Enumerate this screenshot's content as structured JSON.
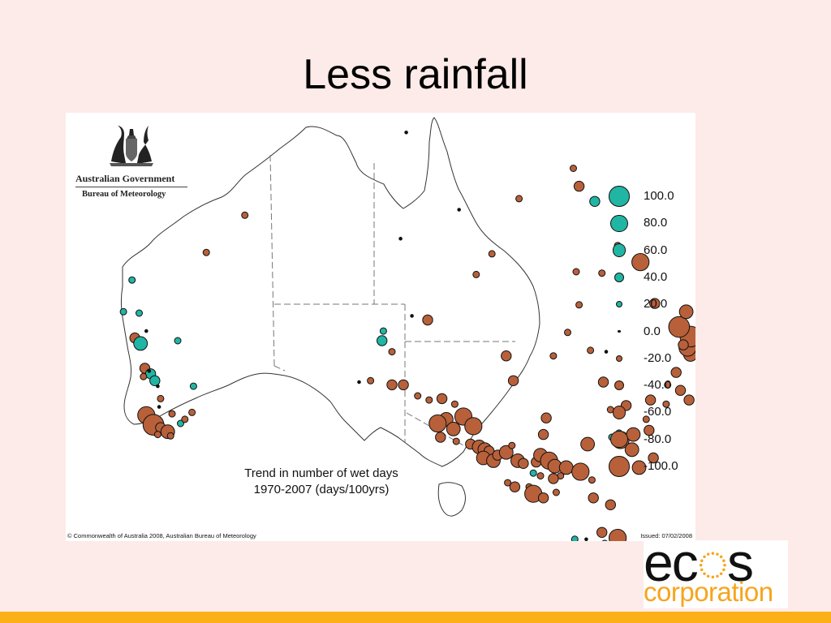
{
  "slide": {
    "title": "Less rainfall"
  },
  "map": {
    "org_name": "Australian Government",
    "org_sub": "Bureau of Meteorology",
    "caption_line1": "Trend in number of wet days",
    "caption_line2": "1970-2007 (days/100yrs)",
    "copyright": "© Commonwealth of Australia 2008, Australian Bureau of Meteorology",
    "issued": "Issued: 07/02/2008",
    "colors": {
      "wetter": "#21b5a4",
      "drier": "#b8603a",
      "outline": "#111111",
      "borders": "#777777"
    },
    "legend": [
      {
        "value": "100.0",
        "trend": 100
      },
      {
        "value": "80.0",
        "trend": 80
      },
      {
        "value": "60.0",
        "trend": 60
      },
      {
        "value": "40.0",
        "trend": 40
      },
      {
        "value": "20.0",
        "trend": 20
      },
      {
        "value": "0.0",
        "trend": 0
      },
      {
        "value": "-20.0",
        "trend": -20
      },
      {
        "value": "-40.0",
        "trend": -40
      },
      {
        "value": "-60.0",
        "trend": -60
      },
      {
        "value": "-80.0",
        "trend": -80
      },
      {
        "value": "-100.0",
        "trend": -100
      }
    ],
    "stations": [
      [
        119.5,
        -20.6,
        -20
      ],
      [
        122.2,
        -17.9,
        -20
      ],
      [
        114.3,
        -22.6,
        20
      ],
      [
        114.8,
        -25.0,
        20
      ],
      [
        113.7,
        -24.9,
        20
      ],
      [
        115.3,
        -26.3,
        0
      ],
      [
        114.5,
        -26.8,
        -40
      ],
      [
        114.9,
        -27.2,
        60
      ],
      [
        117.5,
        -27.0,
        20
      ],
      [
        115.2,
        -29.0,
        -40
      ],
      [
        115.6,
        -29.4,
        40
      ],
      [
        115.9,
        -29.9,
        40
      ],
      [
        115.1,
        -29.6,
        -20
      ],
      [
        115.5,
        -29.2,
        0
      ],
      [
        116.1,
        -30.3,
        0
      ],
      [
        118.6,
        -30.3,
        20
      ],
      [
        116.3,
        -31.2,
        -20
      ],
      [
        116.2,
        -31.8,
        0
      ],
      [
        117.1,
        -32.3,
        -20
      ],
      [
        117.7,
        -33.0,
        20
      ],
      [
        118.0,
        -32.7,
        -20
      ],
      [
        115.3,
        -32.4,
        -80
      ],
      [
        115.8,
        -33.1,
        -100
      ],
      [
        116.3,
        -33.3,
        -40
      ],
      [
        116.8,
        -33.6,
        -60
      ],
      [
        116.1,
        -33.8,
        -20
      ],
      [
        117.0,
        -33.9,
        -20
      ],
      [
        118.5,
        -32.2,
        -20
      ],
      [
        135.0,
        -25.5,
        -40
      ],
      [
        133.9,
        -25.2,
        0
      ],
      [
        131.8,
        -27.0,
        40
      ],
      [
        131.9,
        -26.3,
        20
      ],
      [
        132.5,
        -27.8,
        -20
      ],
      [
        130.2,
        -30.0,
        0
      ],
      [
        131.0,
        -29.9,
        -20
      ],
      [
        132.5,
        -30.2,
        -40
      ],
      [
        133.3,
        -30.2,
        -40
      ],
      [
        134.3,
        -31.0,
        -20
      ],
      [
        135.1,
        -31.3,
        -20
      ],
      [
        136.0,
        -31.2,
        -40
      ],
      [
        136.9,
        -31.6,
        -20
      ],
      [
        137.5,
        -32.5,
        -80
      ],
      [
        138.2,
        -33.2,
        -80
      ],
      [
        136.3,
        -32.7,
        -60
      ],
      [
        135.7,
        -33.0,
        -80
      ],
      [
        136.8,
        -33.4,
        -60
      ],
      [
        135.9,
        -34.0,
        -40
      ],
      [
        137.0,
        -34.3,
        -20
      ],
      [
        138.0,
        -34.5,
        -40
      ],
      [
        138.6,
        -34.7,
        -60
      ],
      [
        139.0,
        -34.9,
        -60
      ],
      [
        139.3,
        -35.0,
        -40
      ],
      [
        138.9,
        -35.5,
        -60
      ],
      [
        139.6,
        -35.7,
        -60
      ],
      [
        139.9,
        -35.3,
        -40
      ],
      [
        140.5,
        -35.1,
        -60
      ],
      [
        140.9,
        -34.6,
        -20
      ],
      [
        141.3,
        -35.7,
        -60
      ],
      [
        141.7,
        -35.9,
        -40
      ],
      [
        142.6,
        -35.8,
        -40
      ],
      [
        142.9,
        -35.3,
        -60
      ],
      [
        143.5,
        -35.7,
        -80
      ],
      [
        143.9,
        -36.1,
        -60
      ],
      [
        144.7,
        -36.2,
        -60
      ],
      [
        144.3,
        -36.8,
        -20
      ],
      [
        145.7,
        -36.5,
        -80
      ],
      [
        140.6,
        -37.3,
        -20
      ],
      [
        141.1,
        -37.6,
        -40
      ],
      [
        142.1,
        -37.6,
        -20
      ],
      [
        142.4,
        -38.1,
        -80
      ],
      [
        143.1,
        -38.4,
        -40
      ],
      [
        144.0,
        -38.0,
        -20
      ],
      [
        142.4,
        -36.6,
        20
      ],
      [
        142.9,
        -36.8,
        -20
      ],
      [
        143.8,
        -37.0,
        -40
      ],
      [
        146.5,
        -37.1,
        -20
      ],
      [
        146.6,
        -38.4,
        -40
      ],
      [
        147.8,
        -38.9,
        -40
      ],
      [
        140.5,
        -28.1,
        -40
      ],
      [
        141.0,
        -29.9,
        -40
      ],
      [
        143.3,
        -32.6,
        -40
      ],
      [
        143.1,
        -33.8,
        -40
      ],
      [
        146.2,
        -34.5,
        -60
      ],
      [
        147.3,
        -30.0,
        -40
      ],
      [
        148.5,
        -34.2,
        -80
      ],
      [
        149.3,
        -34.9,
        -60
      ],
      [
        149.8,
        -36.2,
        -60
      ],
      [
        150.8,
        -35.5,
        -40
      ],
      [
        147.9,
        -34.0,
        20
      ],
      [
        148.4,
        -33.7,
        20
      ],
      [
        149.4,
        -33.8,
        -60
      ],
      [
        150.5,
        -33.5,
        -40
      ],
      [
        147.8,
        -32.0,
        -20
      ],
      [
        148.9,
        -31.7,
        -40
      ],
      [
        150.6,
        -31.3,
        -40
      ],
      [
        151.7,
        -31.6,
        -20
      ],
      [
        150.3,
        -32.7,
        -20
      ],
      [
        153.3,
        -31.3,
        -40
      ],
      [
        152.7,
        -30.6,
        -40
      ],
      [
        151.8,
        -30.2,
        -20
      ],
      [
        152.4,
        -29.3,
        -40
      ],
      [
        153.4,
        -28.0,
        -60
      ],
      [
        153.2,
        -27.5,
        -80
      ],
      [
        153.4,
        -26.7,
        -100
      ],
      [
        152.6,
        -26.0,
        -100
      ],
      [
        152.9,
        -27.3,
        -40
      ],
      [
        153.1,
        -24.9,
        -60
      ],
      [
        150.9,
        -24.3,
        -40
      ],
      [
        147.5,
        -27.8,
        0
      ],
      [
        146.4,
        -27.7,
        -20
      ],
      [
        143.8,
        -28.1,
        -20
      ],
      [
        144.8,
        -26.4,
        -20
      ],
      [
        145.6,
        -24.4,
        -20
      ],
      [
        147.2,
        -22.1,
        -20
      ],
      [
        145.4,
        -22.0,
        -20
      ],
      [
        148.3,
        -20.1,
        -20
      ],
      [
        149.9,
        -21.3,
        -80
      ],
      [
        145.6,
        -15.8,
        -40
      ],
      [
        146.7,
        -16.9,
        40
      ],
      [
        145.2,
        -14.5,
        -20
      ],
      [
        141.4,
        -16.7,
        -20
      ],
      [
        137.2,
        -17.5,
        0
      ],
      [
        139.5,
        -20.7,
        -20
      ],
      [
        133.5,
        -11.9,
        0
      ],
      [
        133.1,
        -19.6,
        0
      ],
      [
        138.4,
        -22.2,
        -20
      ],
      [
        147.2,
        -40.9,
        -40
      ],
      [
        148.3,
        -41.3,
        -80
      ],
      [
        147.6,
        -42.9,
        -60
      ],
      [
        146.3,
        -42.3,
        -20
      ],
      [
        145.3,
        -41.4,
        20
      ],
      [
        146.9,
        -43.4,
        -20
      ],
      [
        146.1,
        -41.4,
        0
      ],
      [
        147.4,
        -41.7,
        20
      ]
    ]
  }
}
